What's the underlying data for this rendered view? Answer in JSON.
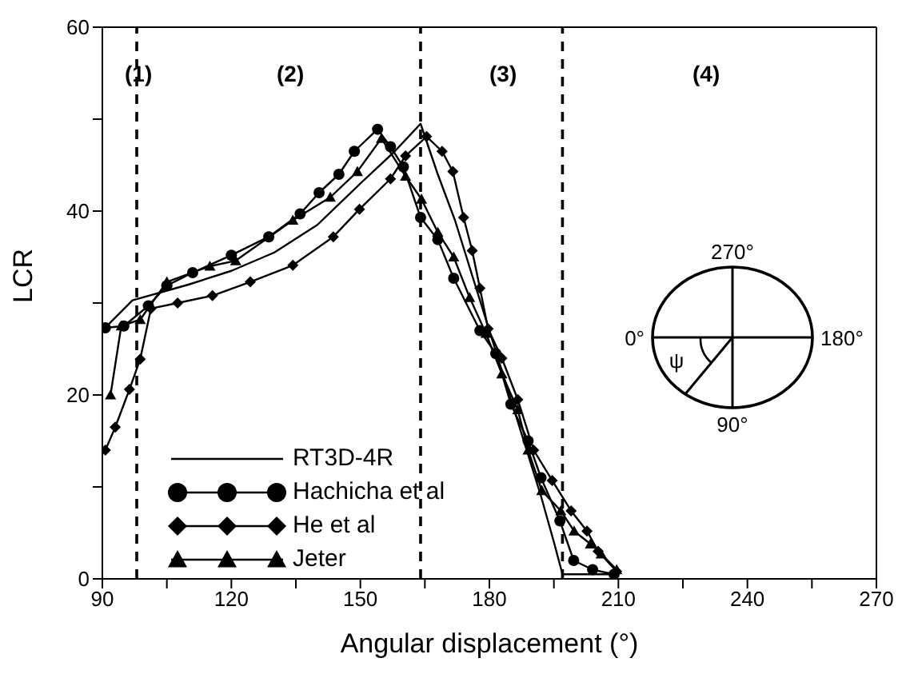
{
  "chart_data": {
    "type": "line",
    "xlabel": "Angular displacement (°)",
    "ylabel": "LCR",
    "xlim": [
      90,
      270
    ],
    "xticks": [
      90,
      {
        "value": 105,
        "label": null
      },
      120,
      {
        "value": 135,
        "label": null
      },
      150,
      {
        "value": 165,
        "label": null
      },
      180,
      {
        "value": 195,
        "label": null
      },
      210,
      {
        "value": 225,
        "label": null
      },
      240,
      {
        "value": 255,
        "label": null
      },
      270
    ],
    "ylim": [
      0,
      60
    ],
    "yticks": [
      0,
      {
        "value": 10,
        "label": null
      },
      20,
      {
        "value": 30,
        "label": null
      },
      40,
      {
        "value": 50,
        "label": null
      },
      60
    ],
    "legend": "bottom left",
    "line_style": "solid",
    "series": [
      {
        "name": "RT3D-4R",
        "color": "#000000",
        "marker": "none",
        "x": [
          90,
          97,
          110,
          120,
          130,
          140,
          150,
          158,
          164,
          168,
          172,
          176,
          180,
          184,
          188,
          192,
          195,
          197,
          210
        ],
        "values": [
          27,
          30.3,
          32,
          33.5,
          35.5,
          38.5,
          43,
          46.5,
          49.5,
          44,
          39,
          33,
          27,
          21,
          15,
          9,
          4,
          0.5,
          0.5
        ]
      },
      {
        "name": "Hachicha et al",
        "color": "#000000",
        "marker": "circle",
        "x": [
          90.7,
          95,
          100.7,
          105,
          111,
          120,
          128.7,
          136,
          140.4,
          145,
          148.6,
          154,
          157,
          160,
          164,
          168,
          171.7,
          177.8,
          181.5,
          185,
          189,
          192,
          196.4,
          199.6,
          204,
          209
        ],
        "values": [
          27.3,
          27.5,
          29.7,
          31.9,
          33.3,
          35.2,
          37.2,
          39.7,
          42,
          44,
          46.5,
          48.9,
          47,
          44.8,
          39.3,
          36.9,
          32.7,
          27,
          24.5,
          19,
          15,
          11,
          6.3,
          2,
          1,
          0.5
        ]
      },
      {
        "name": "He et al",
        "color": "#000000",
        "marker": "diamond",
        "x": [
          90.7,
          93,
          96.3,
          98.8,
          101.3,
          107.5,
          115.6,
          124.4,
          134.3,
          143.7,
          149.8,
          157,
          160.5,
          165.4,
          169,
          171.5,
          174,
          176,
          177.8,
          179.7,
          182.9,
          186.6,
          190.3,
          194.6,
          199,
          202.7,
          205.3,
          209.6
        ],
        "values": [
          14,
          16.5,
          20.6,
          23.9,
          29.4,
          30,
          30.8,
          32.3,
          34.1,
          37.2,
          40.2,
          43.5,
          46,
          48.1,
          46.5,
          44.3,
          39.3,
          35.7,
          31.6,
          27.2,
          24,
          19.5,
          14,
          10.7,
          7.4,
          5.2,
          3,
          0.8
        ]
      },
      {
        "name": "Jeter",
        "color": "#000000",
        "marker": "triangle",
        "x": [
          91.9,
          94.4,
          98.8,
          105,
          115,
          121,
          134.3,
          143,
          149.3,
          154.9,
          160.5,
          164.2,
          168,
          171.7,
          175.4,
          179.2,
          182.9,
          186.6,
          189,
          192.2,
          196.6,
          199.7,
          203.5,
          206,
          209.6
        ],
        "values": [
          20,
          27.5,
          28.2,
          32.3,
          34,
          34.6,
          39,
          41.5,
          44.3,
          47.9,
          43.8,
          41.3,
          37.7,
          35,
          30.6,
          26.7,
          22.3,
          18.4,
          14,
          9.6,
          7.4,
          5.2,
          3.8,
          2.7,
          1
        ]
      }
    ],
    "ref_lines": [
      {
        "axis": "x",
        "value": 98,
        "line_style": "dashed",
        "color": "#000000"
      },
      {
        "axis": "x",
        "value": 164,
        "line_style": "dashed",
        "color": "#000000"
      },
      {
        "axis": "x",
        "value": 197,
        "line_style": "dashed",
        "color": "#000000"
      }
    ],
    "annotations": [
      "(1)",
      "(2)",
      "(3)",
      "(4)",
      "270°",
      "0°",
      "180°",
      "90°",
      "ψ"
    ]
  }
}
